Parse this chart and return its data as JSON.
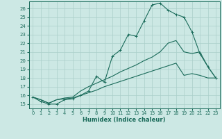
{
  "title": "",
  "xlabel": "Humidex (Indice chaleur)",
  "bg_color": "#cce8e4",
  "grid_color": "#aacfca",
  "line_color": "#1a6b5a",
  "xlim": [
    -0.5,
    23.5
  ],
  "ylim": [
    14.5,
    26.8
  ],
  "yticks": [
    15,
    16,
    17,
    18,
    19,
    20,
    21,
    22,
    23,
    24,
    25,
    26
  ],
  "xticks": [
    0,
    1,
    2,
    3,
    4,
    5,
    6,
    7,
    8,
    9,
    10,
    11,
    12,
    13,
    14,
    15,
    16,
    17,
    18,
    19,
    20,
    21,
    22,
    23
  ],
  "line1_x": [
    0,
    1,
    2,
    3,
    4,
    5,
    6,
    7,
    8,
    9,
    10,
    11,
    12,
    13,
    14,
    15,
    16,
    17,
    18,
    19,
    20,
    21,
    22,
    23
  ],
  "line1_y": [
    15.8,
    15.3,
    15.0,
    15.0,
    15.5,
    15.6,
    16.0,
    16.5,
    18.2,
    17.5,
    20.5,
    21.2,
    23.0,
    22.8,
    24.6,
    26.4,
    26.6,
    25.8,
    25.3,
    25.0,
    23.3,
    20.8,
    19.3,
    18.0
  ],
  "line2_x": [
    0,
    1,
    2,
    3,
    4,
    5,
    6,
    7,
    8,
    9,
    10,
    11,
    12,
    13,
    14,
    15,
    16,
    17,
    18,
    19,
    20,
    21,
    22,
    23
  ],
  "line2_y": [
    15.8,
    15.5,
    15.1,
    15.5,
    15.7,
    15.8,
    16.5,
    17.0,
    17.4,
    17.8,
    18.2,
    18.7,
    19.1,
    19.5,
    20.0,
    20.4,
    21.0,
    22.0,
    22.3,
    21.0,
    20.8,
    21.0,
    19.3,
    18.0
  ],
  "line3_x": [
    0,
    1,
    2,
    3,
    4,
    5,
    6,
    7,
    8,
    9,
    10,
    11,
    12,
    13,
    14,
    15,
    16,
    17,
    18,
    19,
    20,
    21,
    22,
    23
  ],
  "line3_y": [
    15.8,
    15.5,
    15.1,
    15.5,
    15.6,
    15.7,
    16.0,
    16.3,
    16.6,
    17.0,
    17.3,
    17.6,
    17.9,
    18.2,
    18.5,
    18.8,
    19.1,
    19.4,
    19.7,
    18.3,
    18.5,
    18.3,
    18.0,
    18.0
  ]
}
